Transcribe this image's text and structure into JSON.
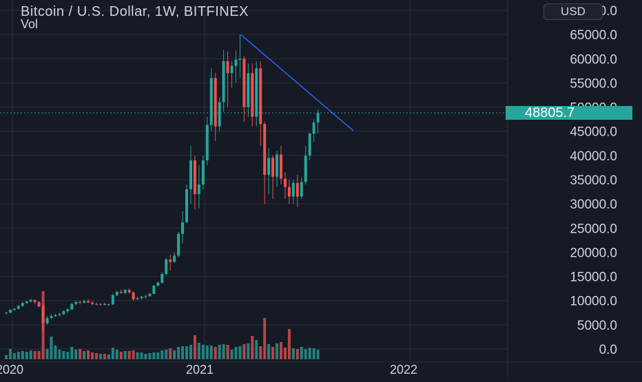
{
  "header": {
    "title": "Bitcoin / U.S. Dollar, 1W, BITFINEX",
    "subtitle": "Vol",
    "currency_button": "USD"
  },
  "price_badge": "48805.7",
  "colors": {
    "background": "#161a25",
    "up": "#26a69a",
    "down": "#ef5350",
    "trendline": "#2962ff",
    "grid": "#2a2e39"
  },
  "chart_data": {
    "type": "candlestick",
    "title": "Bitcoin / U.S. Dollar, 1W, BITFINEX",
    "y_axis": {
      "ticks": [
        "0.0",
        "5000.0",
        "10000.0",
        "15000.0",
        "20000.0",
        "25000.0",
        "30000.0",
        "35000.0",
        "40000.0",
        "45000.0",
        "50000.0",
        "55000.0",
        "60000.0",
        "65000.0",
        "70000.0"
      ],
      "range": [
        0,
        70000
      ],
      "position": "right"
    },
    "x_axis": {
      "ticks": [
        "2020",
        "2021",
        "2022"
      ]
    },
    "last_price": 48805.7,
    "candles": [
      [
        7400,
        7700,
        7200,
        7500
      ],
      [
        7500,
        8200,
        7400,
        8100
      ],
      [
        8100,
        8500,
        7800,
        8300
      ],
      [
        8300,
        9100,
        8200,
        8900
      ],
      [
        8900,
        9700,
        8700,
        9500
      ],
      [
        9500,
        10000,
        9300,
        9800
      ],
      [
        9800,
        10400,
        9600,
        10100
      ],
      [
        10100,
        10300,
        9300,
        9700
      ],
      [
        9700,
        9900,
        8600,
        8800
      ],
      [
        8800,
        9200,
        3800,
        5300
      ],
      [
        5300,
        6800,
        5000,
        6400
      ],
      [
        6400,
        7200,
        6200,
        6800
      ],
      [
        6800,
        7300,
        6600,
        7000
      ],
      [
        7000,
        7500,
        6700,
        7200
      ],
      [
        7200,
        8000,
        7000,
        7800
      ],
      [
        7800,
        8400,
        7400,
        8200
      ],
      [
        8200,
        9500,
        8000,
        9300
      ],
      [
        9300,
        10000,
        9000,
        9700
      ],
      [
        9700,
        10000,
        9200,
        9600
      ],
      [
        9600,
        10200,
        9400,
        9900
      ],
      [
        9900,
        10300,
        9500,
        9600
      ],
      [
        9600,
        9900,
        9100,
        9300
      ],
      [
        9300,
        9600,
        9000,
        9200
      ],
      [
        9200,
        9500,
        8900,
        9300
      ],
      [
        9300,
        9600,
        9000,
        9100
      ],
      [
        9100,
        9400,
        8900,
        9200
      ],
      [
        9200,
        11400,
        9100,
        11100
      ],
      [
        11100,
        12000,
        10900,
        11800
      ],
      [
        11800,
        12300,
        11400,
        11600
      ],
      [
        11600,
        12400,
        11300,
        12200
      ],
      [
        12200,
        12500,
        11400,
        11700
      ],
      [
        11700,
        11900,
        9900,
        10300
      ],
      [
        10300,
        10800,
        10000,
        10500
      ],
      [
        10500,
        11000,
        10200,
        10800
      ],
      [
        10800,
        11200,
        10400,
        10900
      ],
      [
        10900,
        11600,
        10800,
        11400
      ],
      [
        11400,
        13200,
        11300,
        13100
      ],
      [
        13100,
        14000,
        12900,
        13700
      ],
      [
        13700,
        15900,
        13500,
        15500
      ],
      [
        15500,
        18800,
        15200,
        18500
      ],
      [
        18500,
        19500,
        16200,
        18000
      ],
      [
        18000,
        19900,
        17800,
        19300
      ],
      [
        19300,
        24200,
        19000,
        23800
      ],
      [
        23800,
        28500,
        21800,
        26200
      ],
      [
        26200,
        34000,
        26000,
        33000
      ],
      [
        33000,
        41900,
        30000,
        39000
      ],
      [
        39000,
        40000,
        28800,
        32000
      ],
      [
        32000,
        38000,
        29000,
        34000
      ],
      [
        34000,
        40000,
        33000,
        39000
      ],
      [
        39000,
        48000,
        38000,
        46300
      ],
      [
        46300,
        58000,
        45000,
        56000
      ],
      [
        56000,
        57000,
        43000,
        46000
      ],
      [
        46000,
        52000,
        45000,
        51000
      ],
      [
        51000,
        61800,
        49000,
        59500
      ],
      [
        59500,
        61500,
        50000,
        57000
      ],
      [
        57000,
        59500,
        54000,
        58500
      ],
      [
        58500,
        61700,
        55000,
        59800
      ],
      [
        59800,
        65000,
        56000,
        60000
      ],
      [
        60000,
        60500,
        47000,
        50000
      ],
      [
        50000,
        59000,
        48000,
        57000
      ],
      [
        57000,
        59000,
        46000,
        48000
      ],
      [
        48000,
        59500,
        46000,
        58000
      ],
      [
        58000,
        59500,
        42000,
        46500
      ],
      [
        46500,
        47000,
        30000,
        36000
      ],
      [
        36000,
        41500,
        32000,
        39500
      ],
      [
        39500,
        40000,
        31000,
        35600
      ],
      [
        35600,
        41000,
        33500,
        40200
      ],
      [
        40200,
        42000,
        34000,
        35200
      ],
      [
        35200,
        36500,
        31000,
        33500
      ],
      [
        33500,
        35000,
        30000,
        31500
      ],
      [
        31500,
        35000,
        30000,
        34300
      ],
      [
        34300,
        36000,
        29300,
        31500
      ],
      [
        31500,
        35500,
        31000,
        34500
      ],
      [
        34500,
        42000,
        34000,
        40000
      ],
      [
        40000,
        44700,
        39000,
        44500
      ],
      [
        44500,
        47500,
        42800,
        46800
      ],
      [
        46800,
        49500,
        44500,
        48805.7
      ]
    ],
    "volume": [
      6,
      15,
      9,
      11,
      12,
      11,
      13,
      12,
      12,
      99,
      15,
      33,
      20,
      14,
      12,
      11,
      18,
      14,
      15,
      12,
      13,
      10,
      9,
      8,
      8,
      7,
      17,
      14,
      11,
      12,
      12,
      13,
      10,
      10,
      8,
      9,
      10,
      10,
      13,
      14,
      16,
      13,
      18,
      19,
      19,
      21,
      35,
      24,
      21,
      20,
      20,
      18,
      21,
      22,
      21,
      14,
      18,
      19,
      22,
      23,
      34,
      28,
      19,
      60,
      22,
      18,
      23,
      25,
      17,
      44,
      16,
      15,
      18,
      15,
      17,
      16,
      14
    ],
    "volume_scale_note": "volume bars in arbitrary units (no volume axis printed)",
    "trendline": {
      "from": [
        57,
        65000
      ],
      "to": [
        83,
        45000
      ]
    }
  }
}
